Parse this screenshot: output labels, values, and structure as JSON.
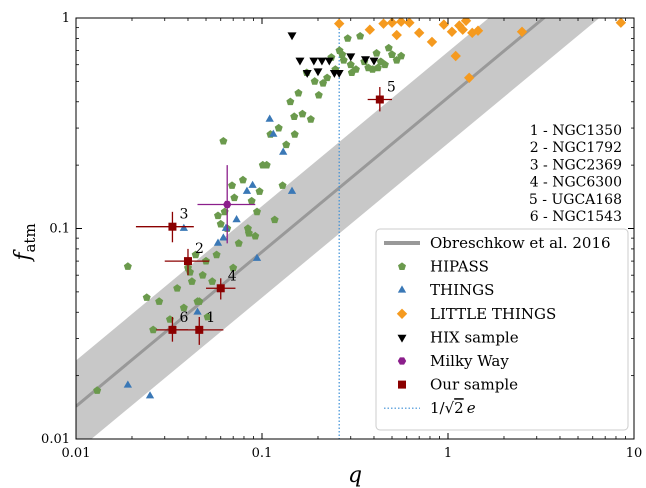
{
  "chart_data": {
    "type": "scatter",
    "xlabel": "q",
    "ylabel_main": "f",
    "ylabel_sub": "atm",
    "xscale": "log",
    "yscale": "log",
    "xlim": [
      0.01,
      10
    ],
    "ylim": [
      0.01,
      1
    ],
    "x_ticks": [
      {
        "value": 0.01,
        "label": "0.01"
      },
      {
        "value": 0.1,
        "label": "0.1"
      },
      {
        "value": 1,
        "label": "1"
      },
      {
        "value": 10,
        "label": "10"
      }
    ],
    "y_ticks": [
      {
        "value": 0.01,
        "label": "0.01"
      },
      {
        "value": 0.1,
        "label": "0.1"
      },
      {
        "value": 1,
        "label": "1"
      }
    ],
    "reference_line": {
      "name": "Obreschkow et al. 2016",
      "color": "#999999",
      "band_color": "#c8c8c8",
      "points": [
        [
          0.01,
          0.0143
        ],
        [
          10,
          2.27
        ]
      ],
      "band_upper": [
        [
          0.01,
          0.0236
        ],
        [
          10,
          3.74
        ]
      ],
      "band_lower": [
        [
          0.01,
          0.0087
        ],
        [
          10,
          1.37
        ]
      ]
    },
    "vertical_line": {
      "name": "1/√2 e",
      "label_prefix": "1/",
      "label_root": "2",
      "label_suffix": "e",
      "x": 0.26,
      "color": "#3c8fd6"
    },
    "series": [
      {
        "name": "HIPASS",
        "marker": "pentagon",
        "color": "#6b9a4d",
        "x": [
          0.013,
          0.019,
          0.024,
          0.026,
          0.028,
          0.032,
          0.035,
          0.038,
          0.042,
          0.044,
          0.046,
          0.048,
          0.051,
          0.054,
          0.041,
          0.057,
          0.058,
          0.062,
          0.065,
          0.06,
          0.069,
          0.071,
          0.075,
          0.079,
          0.084,
          0.088,
          0.092,
          0.097,
          0.101,
          0.106,
          0.111,
          0.117,
          0.123,
          0.129,
          0.135,
          0.142,
          0.149,
          0.157,
          0.165,
          0.174,
          0.183,
          0.192,
          0.202,
          0.213,
          0.224,
          0.236,
          0.248,
          0.261,
          0.275,
          0.289,
          0.304,
          0.32,
          0.337,
          0.355,
          0.373,
          0.393,
          0.413,
          0.435,
          0.458,
          0.48,
          0.5,
          0.53,
          0.56,
          0.04,
          0.045,
          0.07,
          0.085,
          0.094,
          0.15,
          0.3,
          0.27,
          0.42,
          0.05,
          0.063
        ],
        "y": [
          0.017,
          0.066,
          0.047,
          0.033,
          0.045,
          0.037,
          0.052,
          0.042,
          0.056,
          0.075,
          0.045,
          0.06,
          0.038,
          0.056,
          0.062,
          0.075,
          0.115,
          0.26,
          0.1,
          0.105,
          0.16,
          0.14,
          0.085,
          0.17,
          0.1,
          0.135,
          0.092,
          0.15,
          0.2,
          0.2,
          0.28,
          0.11,
          0.3,
          0.16,
          0.25,
          0.4,
          0.34,
          0.44,
          0.35,
          0.55,
          0.33,
          0.5,
          0.43,
          0.49,
          0.52,
          0.65,
          0.57,
          0.7,
          0.63,
          0.8,
          0.55,
          0.57,
          0.82,
          0.62,
          0.58,
          0.57,
          0.68,
          0.62,
          0.6,
          0.72,
          0.67,
          0.63,
          0.66,
          0.065,
          0.045,
          0.065,
          0.095,
          0.12,
          0.28,
          0.6,
          0.67,
          0.58,
          0.07,
          0.12
        ]
      },
      {
        "name": "THINGS",
        "marker": "triangle-up",
        "color": "#3a78b6",
        "x": [
          0.019,
          0.025,
          0.045,
          0.058,
          0.064,
          0.073,
          0.083,
          0.089,
          0.094,
          0.11,
          0.115,
          0.13,
          0.145,
          0.038,
          0.062
        ],
        "y": [
          0.018,
          0.016,
          0.04,
          0.085,
          0.1,
          0.11,
          0.15,
          0.16,
          0.072,
          0.33,
          0.28,
          0.23,
          0.15,
          0.1,
          0.09
        ]
      },
      {
        "name": "LITTLE THINGS",
        "marker": "diamond",
        "color": "#f59a1f",
        "x": [
          0.26,
          0.38,
          0.5,
          0.53,
          0.56,
          0.7,
          0.82,
          0.95,
          1.05,
          1.15,
          1.25,
          1.3,
          1.35,
          1.45,
          0.45,
          1.1,
          2.5,
          8.5,
          1.2,
          0.62
        ],
        "y": [
          0.94,
          0.88,
          0.95,
          0.83,
          0.96,
          0.85,
          0.77,
          0.93,
          0.86,
          0.92,
          0.97,
          0.52,
          0.85,
          0.87,
          0.94,
          0.66,
          0.86,
          0.95,
          0.88,
          0.95
        ]
      },
      {
        "name": "HIX sample",
        "marker": "triangle-down",
        "color": "#000000",
        "x": [
          0.145,
          0.16,
          0.175,
          0.19,
          0.2,
          0.21,
          0.23,
          0.245,
          0.26,
          0.3,
          0.36,
          0.4
        ],
        "y": [
          0.83,
          0.63,
          0.55,
          0.63,
          0.56,
          0.63,
          0.63,
          0.55,
          0.55,
          0.66,
          0.64,
          0.63
        ]
      },
      {
        "name": "Milky Way",
        "marker": "hexagon",
        "color": "#8b1e8b",
        "points": [
          {
            "x": 0.065,
            "y": 0.13,
            "xerr": [
              0.045,
              0.092
            ],
            "yerr": [
              0.085,
              0.2
            ]
          }
        ]
      },
      {
        "name": "Our sample",
        "marker": "square",
        "color": "#8b0000",
        "points": [
          {
            "x": 0.046,
            "y": 0.033,
            "xerr": [
              0.034,
              0.062
            ],
            "yerr": [
              0.028,
              0.038
            ],
            "label": "1"
          },
          {
            "x": 0.04,
            "y": 0.07,
            "xerr": [
              0.03,
              0.052
            ],
            "yerr": [
              0.06,
              0.08
            ],
            "label": "2"
          },
          {
            "x": 0.033,
            "y": 0.102,
            "xerr": [
              0.021,
              0.043
            ],
            "yerr": [
              0.086,
              0.12
            ],
            "label": "3"
          },
          {
            "x": 0.06,
            "y": 0.052,
            "xerr": [
              0.05,
              0.072
            ],
            "yerr": [
              0.046,
              0.058
            ],
            "label": "4"
          },
          {
            "x": 0.43,
            "y": 0.41,
            "xerr": [
              0.37,
              0.5
            ],
            "yerr": [
              0.36,
              0.47
            ],
            "label": "5"
          },
          {
            "x": 0.033,
            "y": 0.033,
            "xerr": [
              0.027,
              0.04
            ],
            "yerr": [
              0.029,
              0.038
            ],
            "label": "6"
          }
        ]
      }
    ],
    "annotations": [
      "1 - NGC1350",
      "2 - NGC1792",
      "3 - NGC2369",
      "4 - NGC6300",
      "5 - UGCA168",
      "6 - NGC1543"
    ],
    "legend": {
      "placement": "lower-right",
      "entries": [
        {
          "label": "Obreschkow et al. 2016",
          "kind": "line",
          "color": "#999999"
        },
        {
          "label": "HIPASS",
          "kind": "pentagon",
          "color": "#6b9a4d"
        },
        {
          "label": "THINGS",
          "kind": "triangle-up",
          "color": "#3a78b6"
        },
        {
          "label": "LITTLE THINGS",
          "kind": "diamond",
          "color": "#f59a1f"
        },
        {
          "label": "HIX sample",
          "kind": "triangle-down",
          "color": "#000000"
        },
        {
          "label": "Milky Way",
          "kind": "hexagon",
          "color": "#8b1e8b"
        },
        {
          "label": "Our sample",
          "kind": "square",
          "color": "#8b0000"
        },
        {
          "label": "1/√2 e",
          "label_prefix": "1/",
          "label_root": "2",
          "label_suffix": "e",
          "kind": "dotted",
          "color": "#3c8fd6"
        }
      ]
    },
    "grid": false
  }
}
